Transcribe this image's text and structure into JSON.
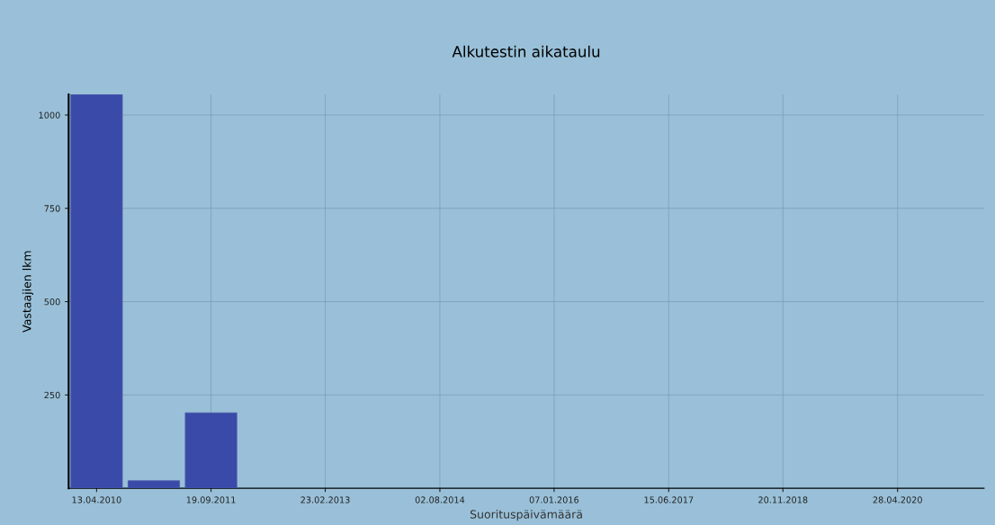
{
  "chart_data": {
    "type": "bar",
    "title": "Alkutestin aikataulu",
    "xlabel": "Suorituspäivämäärä",
    "ylabel": "Vastaajien lkm",
    "x": [
      "2010-04-13",
      "2010-12-31",
      "2011-09-19"
    ],
    "values": [
      1055,
      20,
      202
    ],
    "color": "#3a4aa8",
    "xlim": [
      "2009-12-06",
      "2021-05-29"
    ],
    "xticks": [
      {
        "value": "2010-04-13",
        "label": "13.04.2010"
      },
      {
        "value": "2011-09-19",
        "label": "19.09.2011"
      },
      {
        "value": "2013-02-23",
        "label": "23.02.2013"
      },
      {
        "value": "2014-08-02",
        "label": "02.08.2014"
      },
      {
        "value": "2016-01-07",
        "label": "07.01.2016"
      },
      {
        "value": "2017-06-15",
        "label": "15.06.2017"
      },
      {
        "value": "2018-11-20",
        "label": "20.11.2018"
      },
      {
        "value": "2020-04-28",
        "label": "28.04.2020"
      }
    ],
    "ylim": [
      0,
      1055
    ],
    "yticks": [
      250,
      500,
      750,
      1000
    ],
    "grid": true
  }
}
